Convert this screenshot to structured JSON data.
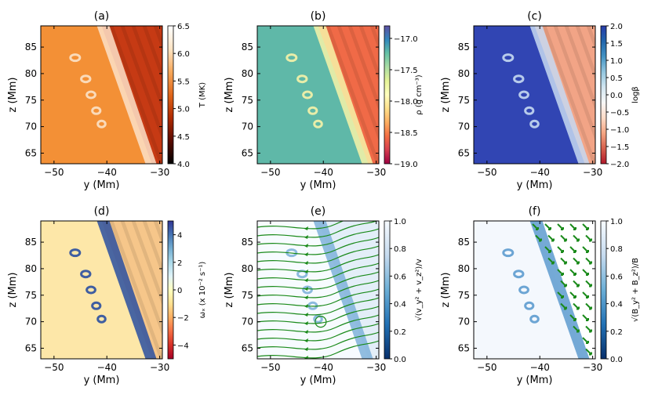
{
  "chart_data": [
    {
      "type": "heatmap",
      "title": "(a)",
      "xlabel": "y (Mm)",
      "ylabel": "z (Mm)",
      "xlim": [
        -52.5,
        -29.5
      ],
      "ylim": [
        63,
        89
      ],
      "xticks": [
        -50,
        -40,
        -30
      ],
      "yticks": [
        65,
        70,
        75,
        80,
        85
      ],
      "colorbar": {
        "label": "T (MK)",
        "range": [
          4.0,
          6.5
        ],
        "ticks": [
          "4.0",
          "4.5",
          "5.0",
          "5.5",
          "6.0",
          "6.5"
        ],
        "cmap": [
          "#000000",
          "#5a0a00",
          "#b02a00",
          "#e0661a",
          "#f7a85a",
          "#fde4c4",
          "#ffffff"
        ]
      },
      "field": {
        "interface_top": [
          -41,
          89
        ],
        "interface_bottom": [
          -31.5,
          63
        ],
        "left_color": "#f39036",
        "right_color": "#c63a14",
        "band_color": "#fbe2c8"
      }
    },
    {
      "type": "heatmap",
      "title": "(b)",
      "xlabel": "y (Mm)",
      "ylabel": "z (Mm)",
      "xlim": [
        -52.5,
        -29.5
      ],
      "ylim": [
        63,
        89
      ],
      "xticks": [
        -50,
        -40,
        -30
      ],
      "yticks": [
        65,
        70,
        75,
        80,
        85
      ],
      "colorbar": {
        "label": "ρ (g cm⁻³)",
        "range": [
          -19.0,
          -16.8
        ],
        "ticks": [
          "−19.0",
          "−18.5",
          "−18.0",
          "−17.5",
          "−17.0"
        ],
        "cmap": [
          "#9e0142",
          "#d53e4f",
          "#f46d43",
          "#fdae61",
          "#fee08b",
          "#ffffbf",
          "#e6f598",
          "#abdda4",
          "#66c2a5",
          "#3288bd",
          "#5e4fa2"
        ]
      },
      "field": {
        "interface_top": [
          -41,
          89
        ],
        "interface_bottom": [
          -31.5,
          63
        ],
        "left_color": "#5fb8a8",
        "right_color": "#f06a47",
        "band_color": "#f7f3a8"
      }
    },
    {
      "type": "heatmap",
      "title": "(c)",
      "xlabel": "y (Mm)",
      "ylabel": "",
      "xlim": [
        -52.5,
        -29.5
      ],
      "ylim": [
        63,
        89
      ],
      "xticks": [
        -50,
        -40,
        -30
      ],
      "yticks": [
        65,
        70,
        75,
        80,
        85
      ],
      "colorbar": {
        "label": "logβ",
        "range": [
          -2.0,
          2.0
        ],
        "ticks": [
          "−2.0",
          "−1.5",
          "−1.0",
          "−0.5",
          "0.0",
          "0.5",
          "1.0",
          "1.5",
          "2.0"
        ],
        "cmap": [
          "#b2182b",
          "#d6604d",
          "#f4a582",
          "#fddbc7",
          "#f7f7f7",
          "#d1e5f0",
          "#92c5de",
          "#4393c3",
          "#2166ac",
          "#283ca8"
        ]
      },
      "field": {
        "interface_top": [
          -41,
          89
        ],
        "interface_bottom": [
          -31.5,
          63
        ],
        "left_color": "#3145b3",
        "right_color": "#f2a486",
        "band_color": "#c7d9f1"
      }
    },
    {
      "type": "heatmap",
      "title": "(d)",
      "xlabel": "y (Mm)",
      "ylabel": "z (Mm)",
      "xlim": [
        -52.5,
        -29.5
      ],
      "ylim": [
        63,
        89
      ],
      "xticks": [
        -50,
        -40,
        -30
      ],
      "yticks": [
        65,
        70,
        75,
        80,
        85
      ],
      "colorbar": {
        "label": "ωₓ (x 10⁻² s⁻¹)",
        "range": [
          -5,
          5
        ],
        "ticks": [
          "−4",
          "−2",
          "0",
          "2",
          "4"
        ],
        "cmap": [
          "#a50026",
          "#d73027",
          "#f46d43",
          "#fdae61",
          "#fee090",
          "#ffffbf",
          "#e0f3f8",
          "#abd9e9",
          "#74add1",
          "#4575b4",
          "#313695"
        ]
      },
      "field": {
        "interface_top": [
          -41,
          89
        ],
        "interface_bottom": [
          -31.5,
          63
        ],
        "left_color": "#fde7a8",
        "right_color": "#f6c68a",
        "band_color": "#2a4fa0"
      }
    },
    {
      "type": "heatmap",
      "title": "(e)",
      "xlabel": "y (Mm)",
      "ylabel": "z (Mm)",
      "xlim": [
        -52.5,
        -29.5
      ],
      "ylim": [
        63,
        89
      ],
      "xticks": [
        -50,
        -40,
        -30
      ],
      "yticks": [
        65,
        70,
        75,
        80,
        85
      ],
      "colorbar": {
        "label": "√(v_y² + v_z²)/v",
        "range": [
          0.0,
          1.0
        ],
        "ticks": [
          "0.0",
          "0.2",
          "0.4",
          "0.6",
          "0.8",
          "1.0"
        ],
        "cmap": [
          "#08306b",
          "#2171b5",
          "#6baed6",
          "#c6dbef",
          "#f7fbff"
        ]
      },
      "overlay": "streamlines",
      "overlay_color": "#1a8a1a",
      "field": {
        "interface_top": [
          -41,
          89
        ],
        "interface_bottom": [
          -31.5,
          63
        ],
        "left_color": "#f7fbff",
        "right_color": "#e3eef8",
        "band_color": "#7fb2da"
      }
    },
    {
      "type": "heatmap",
      "title": "(f)",
      "xlabel": "y (Mm)",
      "ylabel": "z (Mm)",
      "xlim": [
        -52.5,
        -29.5
      ],
      "ylim": [
        63,
        89
      ],
      "xticks": [
        -50,
        -40,
        -30
      ],
      "yticks": [
        65,
        70,
        75,
        80,
        85
      ],
      "colorbar": {
        "label": "√(B_y² + B_z²)/B",
        "range": [
          0.0,
          1.0
        ],
        "ticks": [
          "0.0",
          "0.2",
          "0.4",
          "0.6",
          "0.8",
          "1.0"
        ],
        "cmap": [
          "#08306b",
          "#2171b5",
          "#6baed6",
          "#c6dbef",
          "#f7fbff"
        ]
      },
      "overlay": "arrows",
      "overlay_color": "#1a8a1a",
      "field": {
        "interface_top": [
          -41,
          89
        ],
        "interface_bottom": [
          -31.5,
          63
        ],
        "left_color": "#f4f8fd",
        "right_color": "#ffffff",
        "band_color": "#5d9bcf"
      }
    }
  ]
}
